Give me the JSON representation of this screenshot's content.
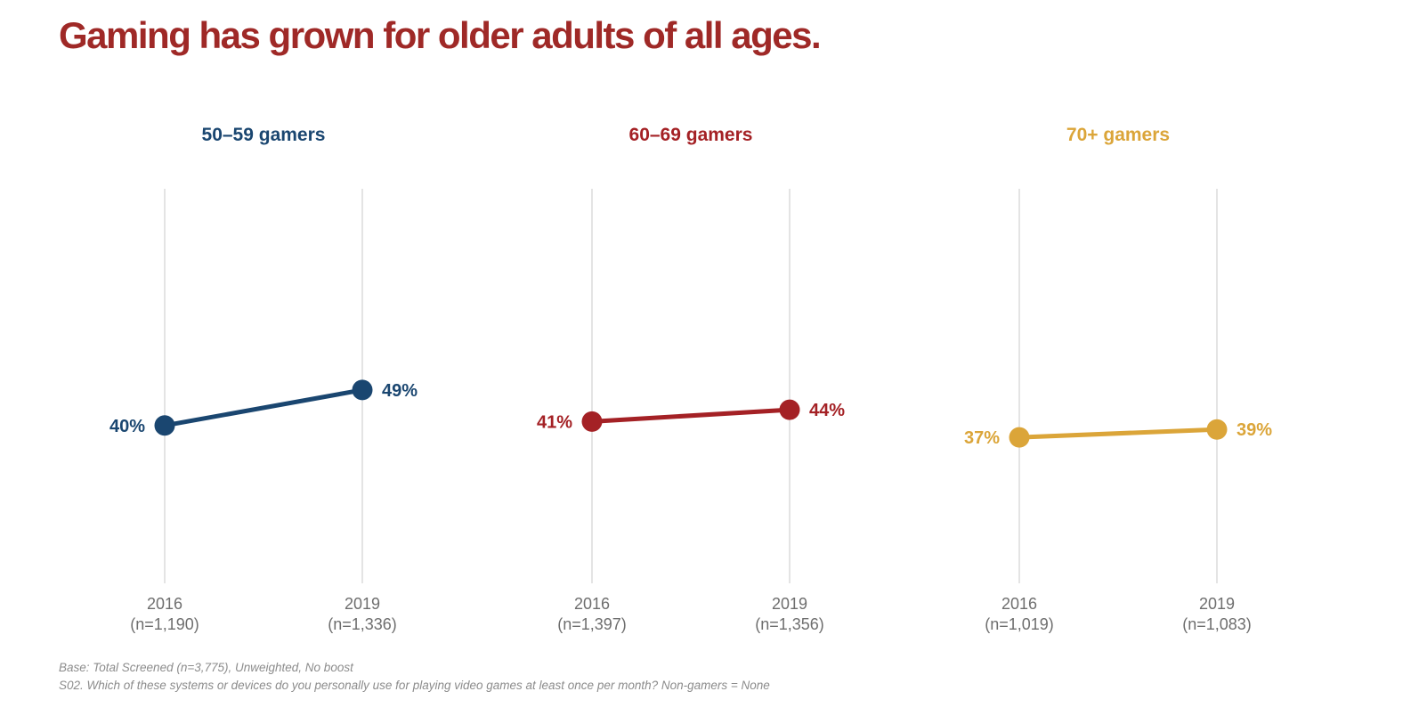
{
  "title": "Gaming has grown for older adults of all ages.",
  "title_color": "#9f2927",
  "footnotes": [
    "Base: Total Screened (n=3,775), Unweighted, No boost",
    "S02. Which of these systems or devices do you personally use for playing video games at least once per month? Non-gamers = None"
  ],
  "chart_data": {
    "type": "line",
    "title": "Gaming has grown for older adults of all ages.",
    "categories": [
      "2016",
      "2019"
    ],
    "ylim": [
      0,
      100
    ],
    "grid": "vertical-gridlines-only",
    "legend_position": "none",
    "layout": "three side-by-side small-multiple slope charts",
    "series": [
      {
        "name": "50–59 gamers",
        "color": "#1a4670",
        "values": [
          40,
          49
        ],
        "value_labels": [
          "40%",
          "49%"
        ],
        "n_labels": [
          "(n=1,190)",
          "(n=1,336)"
        ]
      },
      {
        "name": "60–69 gamers",
        "color": "#a42125",
        "values": [
          41,
          44
        ],
        "value_labels": [
          "41%",
          "44%"
        ],
        "n_labels": [
          "(n=1,397)",
          "(n=1,356)"
        ]
      },
      {
        "name": "70+ gamers",
        "color": "#dba539",
        "values": [
          37,
          39
        ],
        "value_labels": [
          "37%",
          "39%"
        ],
        "n_labels": [
          "(n=1,019)",
          "(n=1,083)"
        ]
      }
    ]
  }
}
